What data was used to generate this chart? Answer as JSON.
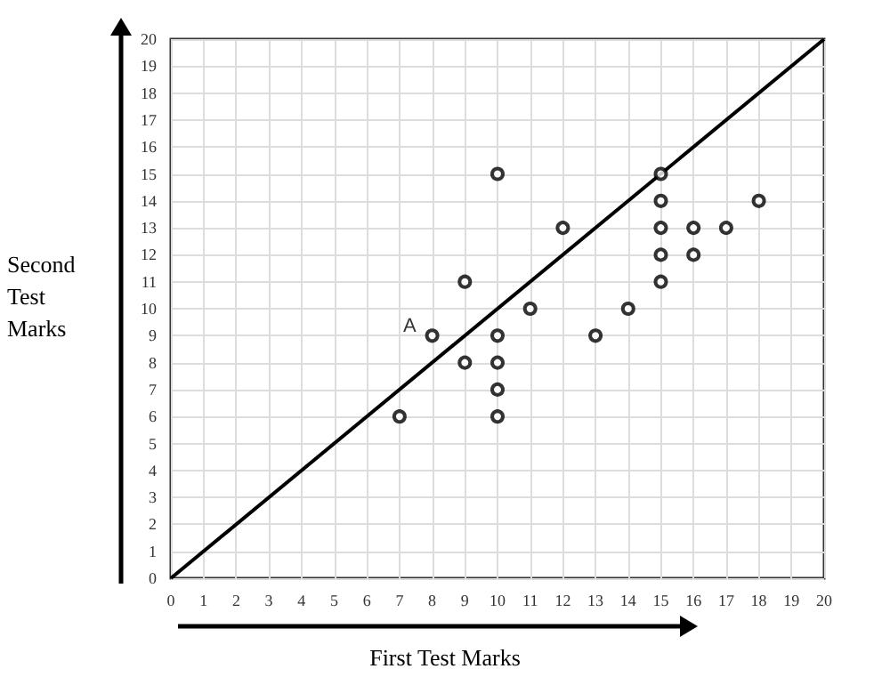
{
  "chart_data": {
    "type": "scatter",
    "xlabel": "First Test Marks",
    "ylabel": "Second Test Marks",
    "marker": "circle",
    "grid": true,
    "xlim": [
      0,
      20
    ],
    "ylim": [
      0,
      20
    ],
    "xticks": [
      0,
      1,
      2,
      3,
      4,
      5,
      6,
      7,
      8,
      9,
      10,
      11,
      12,
      13,
      14,
      15,
      16,
      17,
      18,
      19,
      20
    ],
    "yticks": [
      0,
      1,
      2,
      3,
      4,
      5,
      6,
      7,
      8,
      9,
      10,
      11,
      12,
      13,
      14,
      15,
      16,
      17,
      18,
      19,
      20
    ],
    "series": [
      {
        "color": "#000000",
        "x": [
          7,
          8,
          9,
          9,
          10,
          10,
          10,
          10,
          10,
          11,
          12,
          13,
          14,
          15,
          15,
          15,
          15,
          15,
          16,
          16,
          17,
          18
        ],
        "values": [
          6,
          9,
          8,
          11,
          6,
          7,
          8,
          9,
          15,
          10,
          13,
          9,
          10,
          11,
          12,
          13,
          14,
          15,
          12,
          13,
          13,
          14
        ]
      },
      {
        "type": "line",
        "color": "#000000",
        "x": [
          0,
          20
        ],
        "values": [
          0,
          20
        ],
        "marker": "none"
      }
    ],
    "annotations": [
      {
        "text": "A",
        "x": 8,
        "y": 9
      }
    ]
  }
}
